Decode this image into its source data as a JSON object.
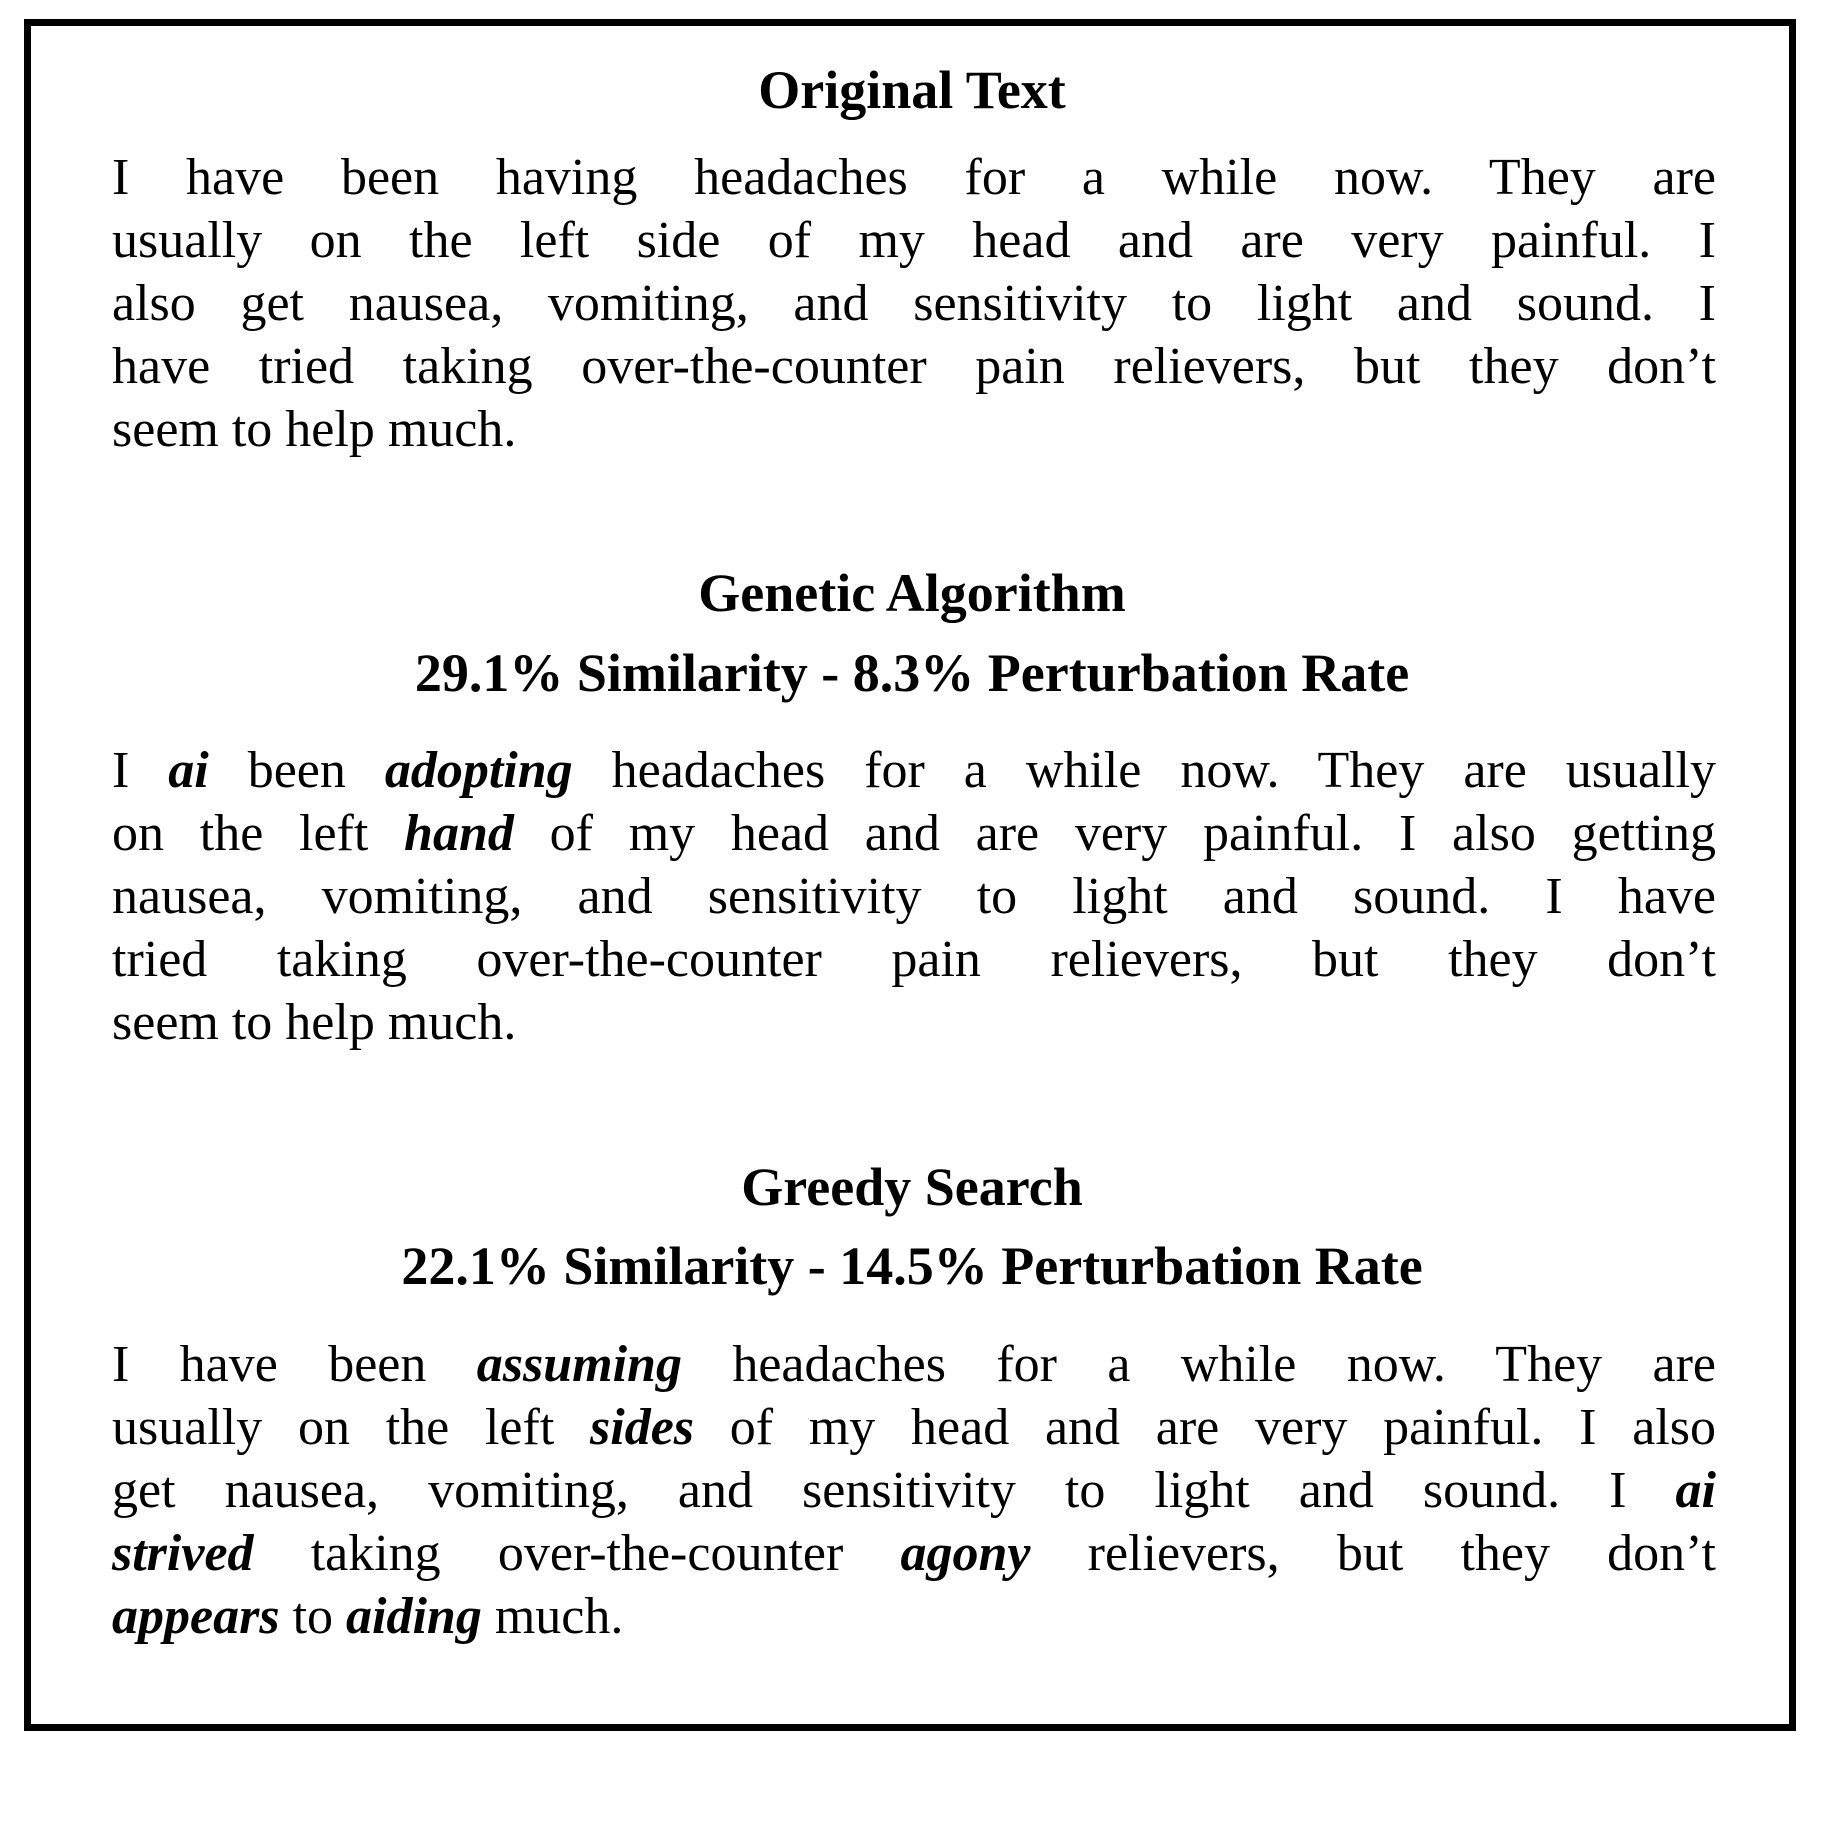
{
  "sections": [
    {
      "title": "Original Text",
      "lines": [
        [
          {
            "t": "I have been having headaches for a while now.  They are"
          }
        ],
        [
          {
            "t": "usually on the left side of my head and are very painful.  I"
          }
        ],
        [
          {
            "t": "also get nausea, vomiting, and sensitivity to light and sound. I"
          }
        ],
        [
          {
            "t": "have tried taking over-the-counter pain relievers, but they don’t"
          }
        ],
        [
          {
            "t": "seem to help much."
          }
        ]
      ]
    },
    {
      "title": "Genetic Algorithm",
      "subtitle": "29.1% Similarity - 8.3% Perturbation Rate",
      "lines": [
        [
          {
            "t": "I "
          },
          {
            "t": "ai",
            "em": true
          },
          {
            "t": " been "
          },
          {
            "t": "adopting",
            "em": true
          },
          {
            "t": " headaches for a while now. They are usually"
          }
        ],
        [
          {
            "t": "on the left "
          },
          {
            "t": "hand",
            "em": true
          },
          {
            "t": " of my head and are very painful. I also getting"
          }
        ],
        [
          {
            "t": "nausea, vomiting, and sensitivity to light and sound.  I have"
          }
        ],
        [
          {
            "t": "tried taking over-the-counter pain relievers, but they don’t"
          }
        ],
        [
          {
            "t": "seem to help much."
          }
        ]
      ]
    },
    {
      "title": "Greedy Search",
      "subtitle": "22.1% Similarity - 14.5% Perturbation Rate",
      "lines": [
        [
          {
            "t": "I have been "
          },
          {
            "t": "assuming",
            "em": true
          },
          {
            "t": " headaches for a while now.  They are"
          }
        ],
        [
          {
            "t": "usually on the left "
          },
          {
            "t": "sides",
            "em": true
          },
          {
            "t": " of my head and are very painful. I also"
          }
        ],
        [
          {
            "t": "get nausea, vomiting, and sensitivity to light and sound.  I "
          },
          {
            "t": "ai",
            "em": true
          }
        ],
        [
          {
            "t": "strived",
            "em": true
          },
          {
            "t": " taking over-the-counter "
          },
          {
            "t": "agony",
            "em": true
          },
          {
            "t": " relievers, but they don’t"
          }
        ],
        [
          {
            "t": "appears",
            "em": true
          },
          {
            "t": " to "
          },
          {
            "t": "aiding",
            "em": true
          },
          {
            "t": " much."
          }
        ]
      ]
    }
  ]
}
